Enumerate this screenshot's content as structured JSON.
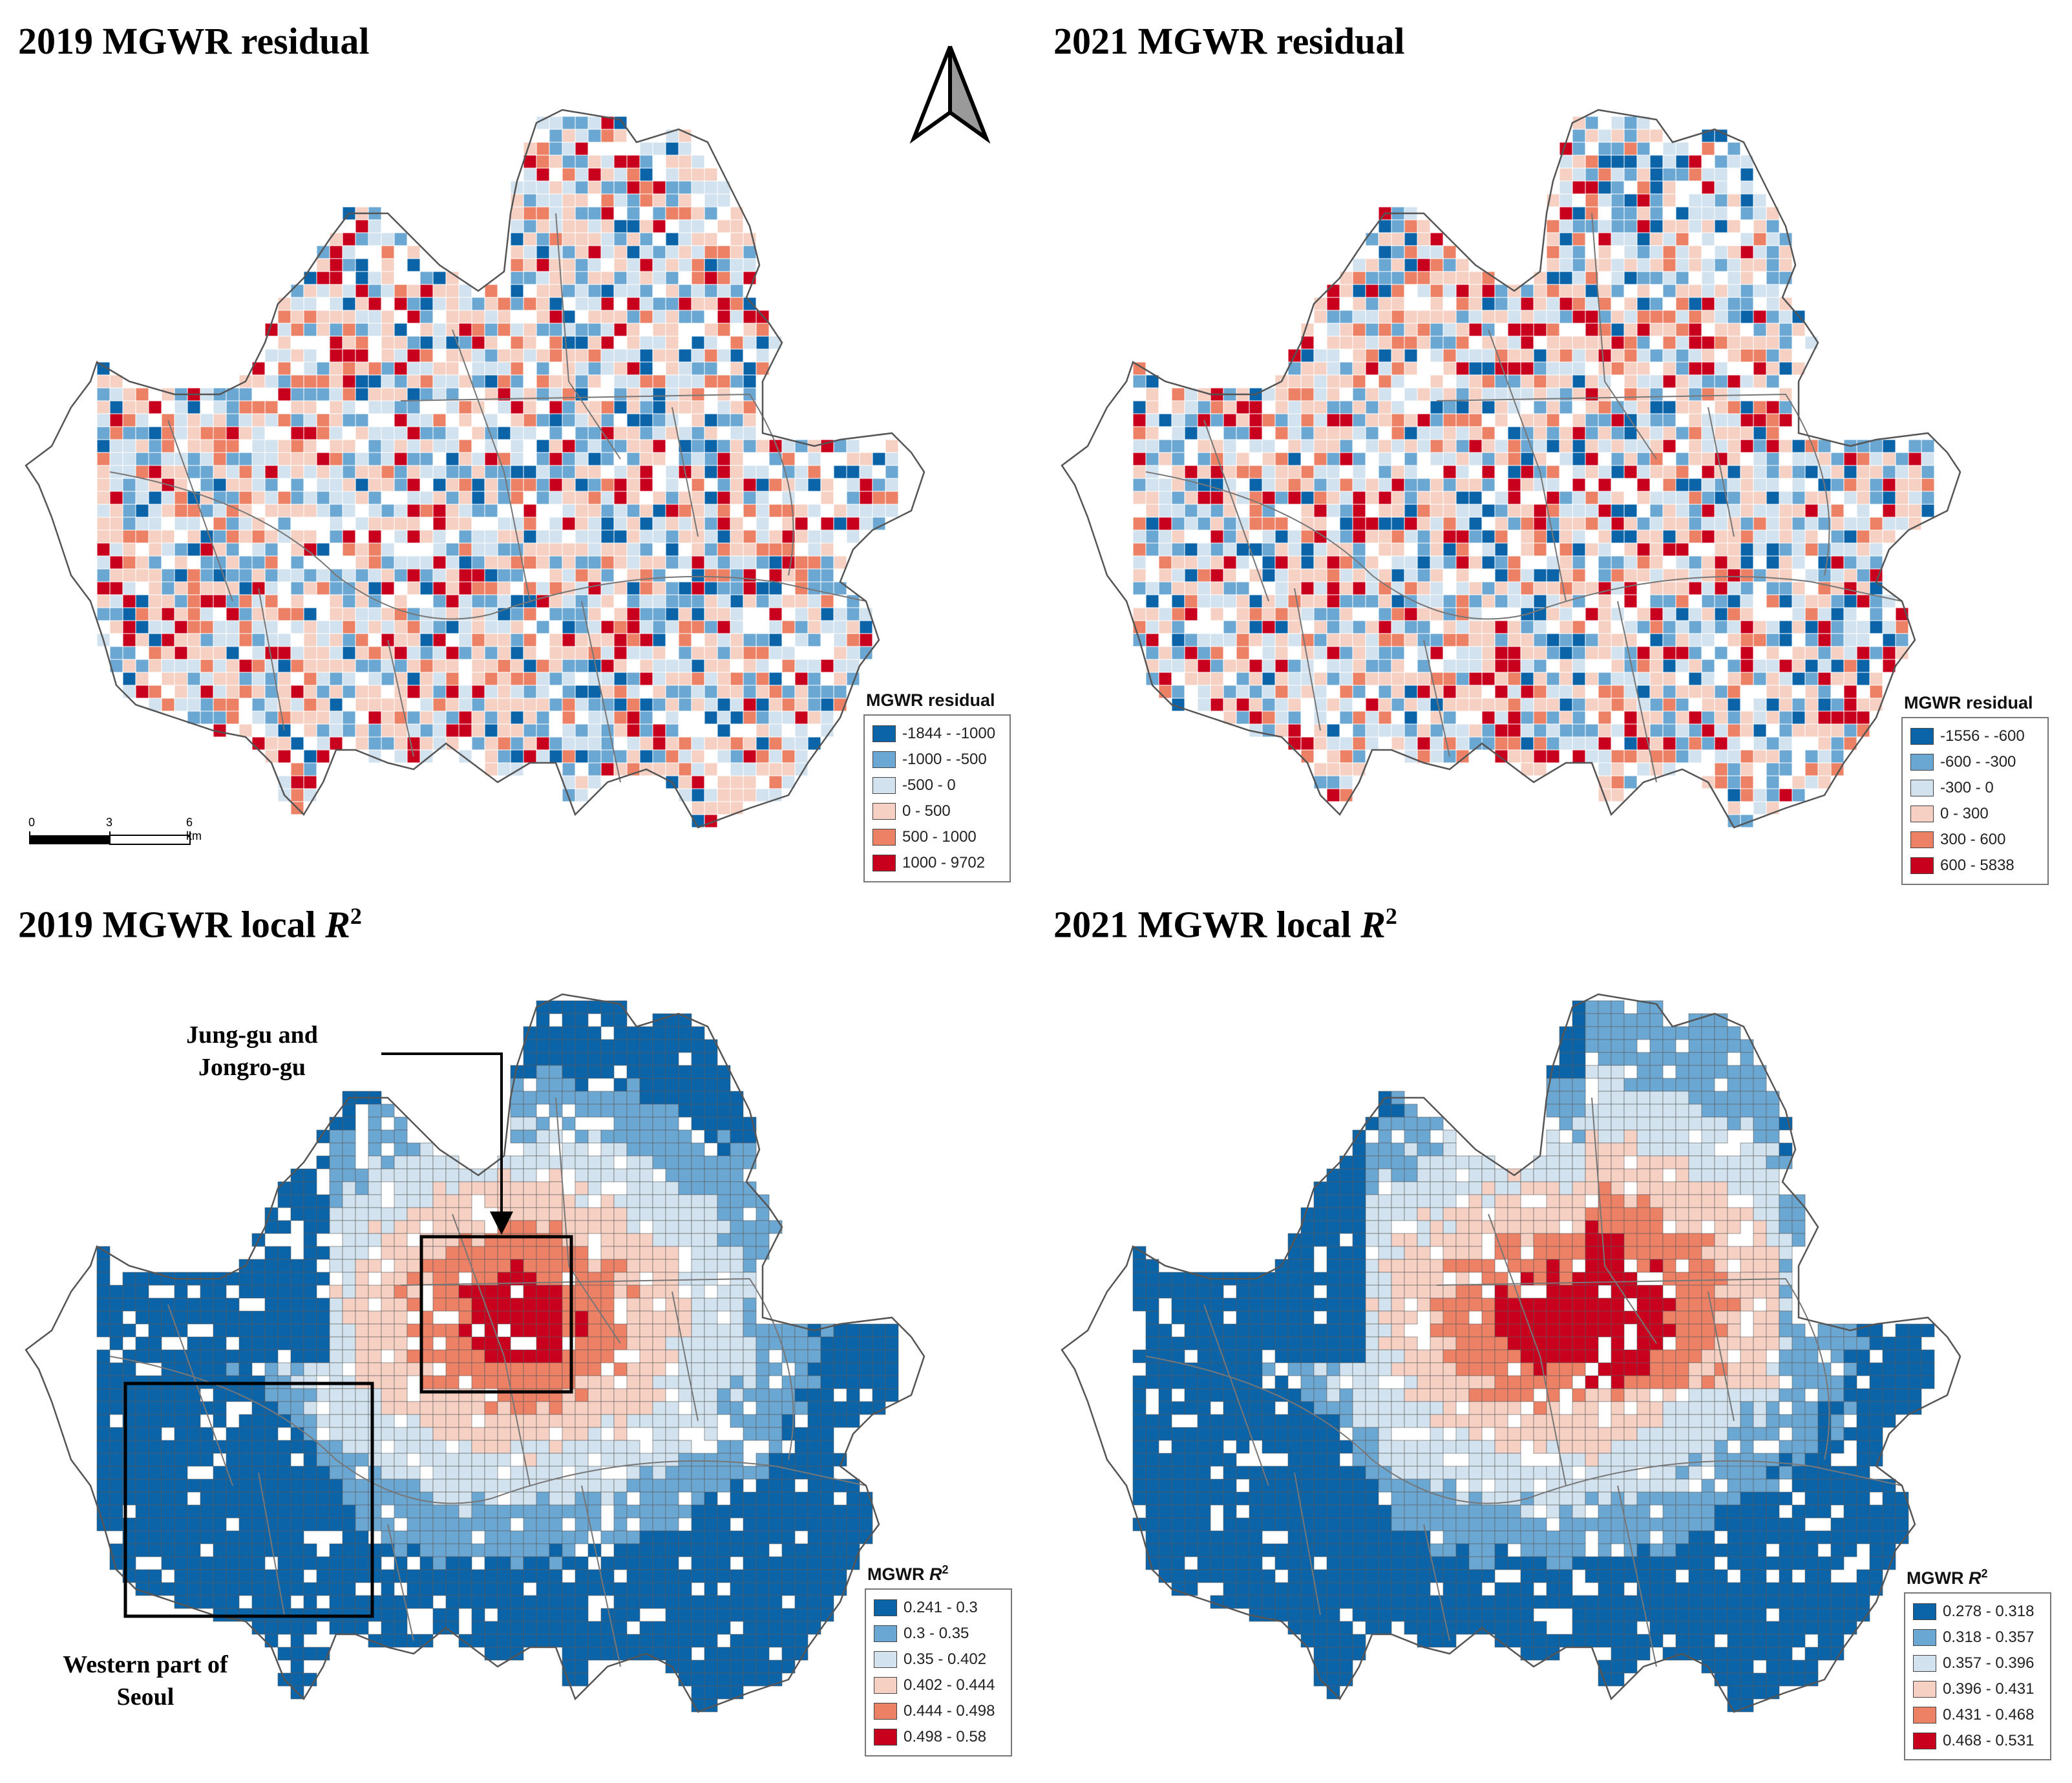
{
  "panels": [
    {
      "id": "res2019",
      "title": "2019 MGWR residual",
      "legend": {
        "title": "MGWR residual",
        "classes": [
          {
            "label": "-1844 - -1000",
            "color": "#0b63a8"
          },
          {
            "label": "-1000 - -500",
            "color": "#6ba7d3"
          },
          {
            "label": "-500 - 0",
            "color": "#d2e3ef"
          },
          {
            "label": "0 - 500",
            "color": "#f6d1c3"
          },
          {
            "label": "500 - 1000",
            "color": "#ec8166"
          },
          {
            "label": "1000 - 9702",
            "color": "#c8001e"
          }
        ]
      }
    },
    {
      "id": "res2021",
      "title": "2021 MGWR residual",
      "legend": {
        "title": "MGWR residual",
        "classes": [
          {
            "label": "-1556 - -600",
            "color": "#0b63a8"
          },
          {
            "label": "-600 - -300",
            "color": "#6ba7d3"
          },
          {
            "label": "-300 - 0",
            "color": "#d2e3ef"
          },
          {
            "label": "0 - 300",
            "color": "#f6d1c3"
          },
          {
            "label": "300 - 600",
            "color": "#ec8166"
          },
          {
            "label": "600 - 5838",
            "color": "#c8001e"
          }
        ]
      }
    },
    {
      "id": "r2_2019",
      "title": "2019 MGWR local",
      "title_symbol": "R",
      "title_exp": "2",
      "legend": {
        "title": "MGWR",
        "title_symbol": "R",
        "title_exp": "2",
        "classes": [
          {
            "label": "0.241 - 0.3",
            "color": "#0b63a8"
          },
          {
            "label": "0.3 - 0.35",
            "color": "#6ba7d3"
          },
          {
            "label": "0.35 - 0.402",
            "color": "#d2e3ef"
          },
          {
            "label": "0.402 - 0.444",
            "color": "#f6d1c3"
          },
          {
            "label": "0.444 - 0.498",
            "color": "#ec8166"
          },
          {
            "label": "0.498 - 0.58",
            "color": "#c8001e"
          }
        ]
      }
    },
    {
      "id": "r2_2021",
      "title": "2021 MGWR local",
      "title_symbol": "R",
      "title_exp": "2",
      "legend": {
        "title": "MGWR",
        "title_symbol": "R",
        "title_exp": "2",
        "classes": [
          {
            "label": "0.278 - 0.318",
            "color": "#0b63a8"
          },
          {
            "label": "0.318 - 0.357",
            "color": "#6ba7d3"
          },
          {
            "label": "0.357 - 0.396",
            "color": "#d2e3ef"
          },
          {
            "label": "0.396 - 0.431",
            "color": "#f6d1c3"
          },
          {
            "label": "0.431 - 0.468",
            "color": "#ec8166"
          },
          {
            "label": "0.468 - 0.531",
            "color": "#c8001e"
          }
        ]
      }
    }
  ],
  "scale_bar": {
    "ticks": [
      "0",
      "3",
      "6 km"
    ]
  },
  "annotations": {
    "central": "Jung-gu and Jongro-gu",
    "western": "Western part of Seoul"
  },
  "north_arrow": "north-arrow-icon"
}
